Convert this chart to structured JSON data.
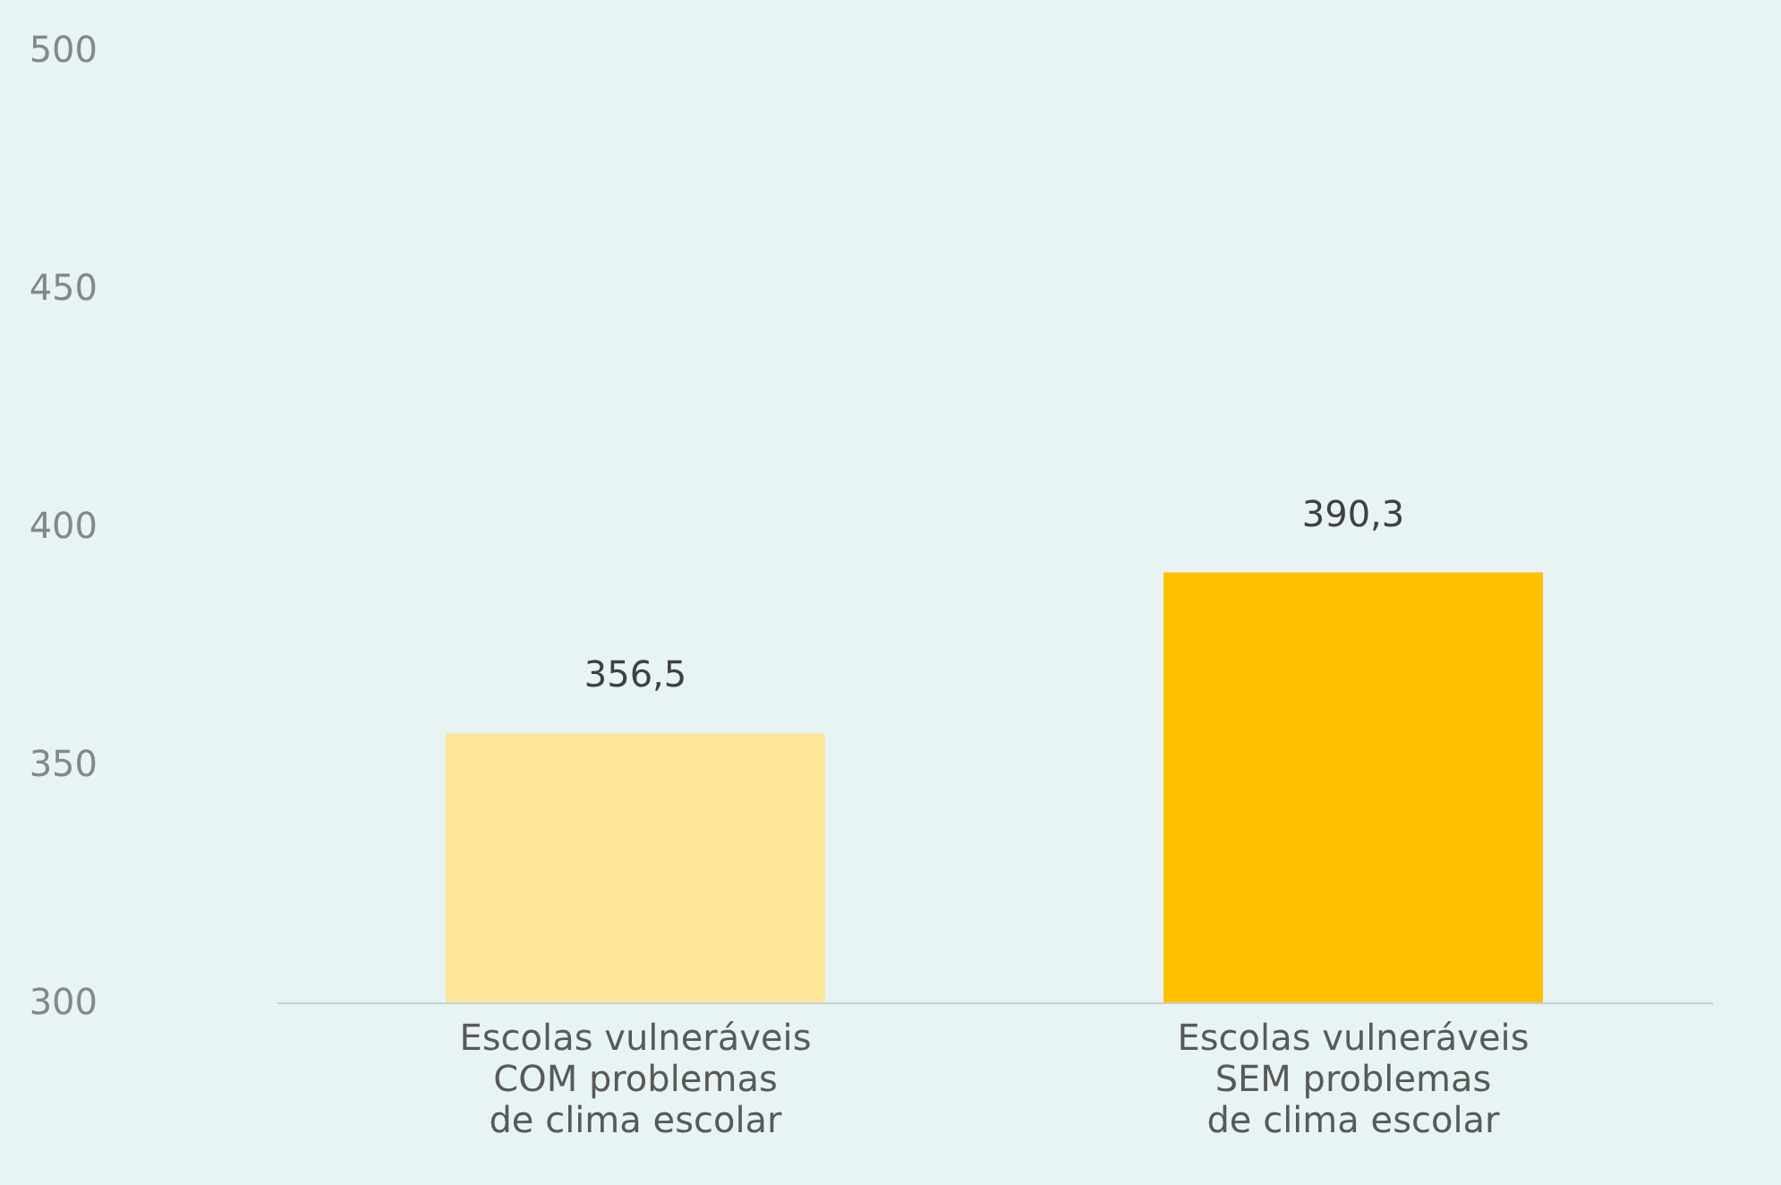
{
  "chart_data": {
    "type": "bar",
    "categories": [
      "Escolas vulneráveis\nCOM problemas\nde clima escolar",
      "Escolas vulneráveis\nSEM problemas\nde clima escolar"
    ],
    "values": [
      356.5,
      390.3
    ],
    "colors": [
      "#fee699",
      "#ffc000"
    ],
    "value_labels": [
      "356,5",
      "390,3"
    ],
    "ylim": [
      300,
      500
    ],
    "yticks": [
      300,
      350,
      400,
      450,
      500
    ],
    "grid": false
  }
}
